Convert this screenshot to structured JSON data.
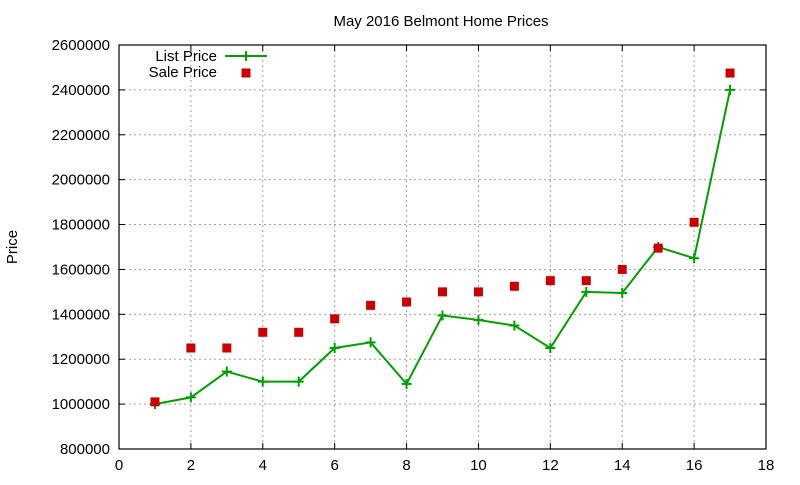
{
  "chart_data": {
    "type": "line",
    "title": "May 2016 Belmont Home Prices",
    "xlabel": "",
    "ylabel": "Price",
    "xlim": [
      0,
      18
    ],
    "ylim": [
      800000,
      2600000
    ],
    "xticks": [
      0,
      2,
      4,
      6,
      8,
      10,
      12,
      14,
      16,
      18
    ],
    "yticks": [
      800000,
      1000000,
      1200000,
      1400000,
      1600000,
      1800000,
      2000000,
      2200000,
      2400000,
      2600000
    ],
    "grid": true,
    "legend_position": "top-left",
    "x": [
      1,
      2,
      3,
      4,
      5,
      6,
      7,
      8,
      9,
      10,
      11,
      12,
      13,
      14,
      15,
      16,
      17
    ],
    "series": [
      {
        "name": "List Price",
        "style": "linespoints",
        "color": "#00a000",
        "values": [
          1000000,
          1030000,
          1145000,
          1100000,
          1100000,
          1250000,
          1275000,
          1090000,
          1395000,
          1375000,
          1350000,
          1250000,
          1500000,
          1495000,
          1700000,
          1650000,
          2400000
        ]
      },
      {
        "name": "Sale Price",
        "style": "points",
        "color": "#cc0000",
        "values": [
          1010000,
          1250000,
          1250000,
          1320000,
          1320000,
          1380000,
          1440000,
          1455000,
          1500000,
          1500000,
          1525000,
          1550000,
          1550000,
          1600000,
          1695000,
          1810000,
          2475000
        ]
      }
    ]
  }
}
